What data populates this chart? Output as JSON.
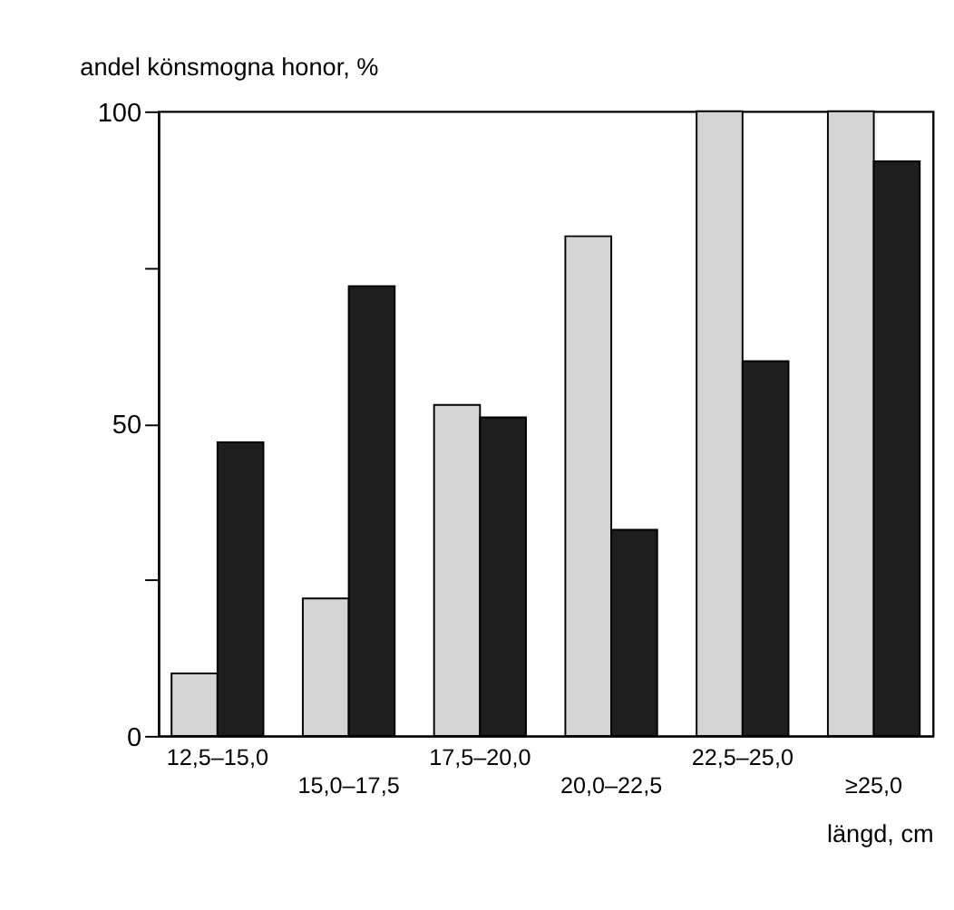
{
  "chart_data": {
    "type": "bar",
    "ylabel": "andel könsmogna honor, %",
    "xlabel": "längd, cm",
    "categories": [
      "12,5–15,0",
      "15,0–17,5",
      "17,5–20,0",
      "20,0–22,5",
      "22,5–25,0",
      "≥25,0"
    ],
    "series": [
      {
        "color": "#d4d4d4",
        "values": [
          10,
          22,
          53,
          80,
          100,
          100
        ]
      },
      {
        "color": "#1e1e1e",
        "values": [
          47,
          72,
          51,
          33,
          60,
          92
        ]
      }
    ],
    "ylim": [
      0,
      100
    ],
    "yticks": [
      0,
      {
        "value": 25,
        "label": null
      },
      50,
      {
        "value": 75,
        "label": null
      },
      100
    ],
    "grid": false,
    "legend": false
  }
}
